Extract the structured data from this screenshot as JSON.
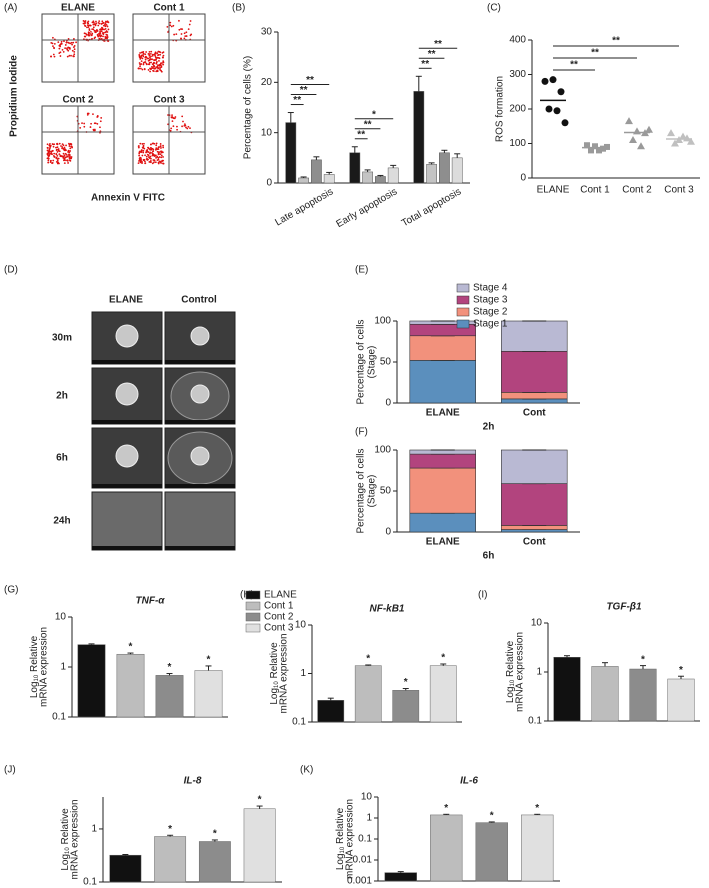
{
  "panel_labels": [
    "(A)",
    "(B)",
    "(C)",
    "(D)",
    "(E)",
    "(F)",
    "(G)",
    "(H)",
    "(I)",
    "(J)",
    "(K)"
  ],
  "flow_cytometry": {
    "ylabel": "Propidium Iodide",
    "xlabel": "Annexin V FITC",
    "plots": [
      "ELANE",
      "Cont 1",
      "Cont 2",
      "Cont 3"
    ]
  },
  "sem": {
    "columns": [
      "ELANE",
      "Control"
    ],
    "rows": [
      "30m",
      "2h",
      "6h",
      "24h"
    ]
  },
  "chart_data": [
    {
      "type": "grouped_bar",
      "ylabel": "Percentage of cells (%)",
      "categories": [
        "Late apoptosis",
        "Early apoptosis",
        "Total apoptosis"
      ],
      "series": [
        {
          "color": "#1a1a1a",
          "values": [
            12,
            6,
            18.2
          ],
          "errors": [
            2,
            1.2,
            3
          ]
        },
        {
          "color": "#c4c4c4",
          "values": [
            1,
            2.2,
            3.7
          ],
          "errors": [
            0.2,
            0.4,
            0.3
          ],
          "significance": [
            "**",
            "**",
            "**"
          ]
        },
        {
          "color": "#8e8e8e",
          "values": [
            4.6,
            1.3,
            6
          ],
          "errors": [
            0.6,
            0.2,
            0.5
          ],
          "significance": [
            "**",
            "**",
            "**"
          ]
        },
        {
          "color": "#dcdcdc",
          "values": [
            1.7,
            3,
            5
          ],
          "errors": [
            0.4,
            0.5,
            0.8
          ],
          "significance": [
            "**",
            "*",
            "**"
          ]
        }
      ],
      "ylim": [
        0,
        30
      ],
      "yticks": [
        0,
        10,
        20,
        30
      ]
    },
    {
      "type": "strip",
      "ylabel": "ROS formation",
      "categories": [
        "ELANE",
        "Cont 1",
        "Cont 2",
        "Cont 3"
      ],
      "values": [
        [
          280,
          285,
          250,
          200,
          195,
          160
        ],
        [
          95,
          92,
          85,
          80,
          80,
          90
        ],
        [
          165,
          135,
          130,
          110,
          92,
          140
        ],
        [
          130,
          110,
          115,
          100,
          120,
          105
        ]
      ],
      "medians": [
        225,
        88,
        132,
        113
      ],
      "colors": [
        "#111111",
        "#9a9a9a",
        "#9a9a9a",
        "#c0c0c0"
      ],
      "markers": [
        "circle",
        "square",
        "triangle",
        "triangle"
      ],
      "significance": [
        null,
        "**",
        "**",
        "**"
      ],
      "ylim": [
        0,
        400
      ],
      "yticks": [
        0,
        100,
        200,
        300,
        400
      ]
    },
    {
      "type": "stacked_bar",
      "ylabel": [
        "Percentage of cells",
        "(Stage)"
      ],
      "xlabel": "2h",
      "categories": [
        "ELANE",
        "Cont"
      ],
      "series": [
        {
          "name": "Stage 1",
          "color": "#5b8fbd",
          "values": [
            52,
            5
          ]
        },
        {
          "name": "Stage 2",
          "color": "#f2917c",
          "values": [
            30,
            8
          ]
        },
        {
          "name": "Stage 3",
          "color": "#b2447e",
          "values": [
            14,
            50
          ]
        },
        {
          "name": "Stage 4",
          "color": "#b9b9d3",
          "values": [
            4,
            37
          ]
        }
      ],
      "ylim": [
        0,
        100
      ],
      "yticks": [
        0,
        50,
        100
      ],
      "legend": true
    },
    {
      "type": "stacked_bar",
      "ylabel": [
        "Percentage of cells",
        "(Stage)"
      ],
      "xlabel": "6h",
      "categories": [
        "ELANE",
        "Cont"
      ],
      "series": [
        {
          "color": "#5b8fbd",
          "values": [
            23,
            3
          ]
        },
        {
          "color": "#f2917c",
          "values": [
            55,
            5
          ]
        },
        {
          "color": "#b2447e",
          "values": [
            17,
            51
          ]
        },
        {
          "color": "#b9b9d3",
          "values": [
            5,
            41
          ]
        }
      ],
      "ylim": [
        0,
        100
      ],
      "yticks": [
        0,
        50,
        100
      ],
      "legend": false
    },
    {
      "type": "log_bar",
      "title": "TNF-α",
      "ylabel": {
        "base": "Log",
        "sub": "10",
        "text": " Relative",
        "line2": "mRNA expression"
      },
      "values": [
        2.8,
        1.8,
        0.68,
        0.85
      ],
      "errors": [
        0.1,
        0.1,
        0.06,
        0.2
      ],
      "colors": [
        "#111111",
        "#bdbdbd",
        "#8c8c8c",
        "#e0e0e0"
      ],
      "significance": [
        null,
        "*",
        "*",
        "*"
      ],
      "ylim": [
        0.1,
        10
      ],
      "yticks": [
        0.1,
        1,
        10
      ],
      "log_scale": true,
      "legend": [
        "ELANE",
        "Cont 1",
        "Cont 2",
        "Cont 3"
      ]
    },
    {
      "type": "log_bar",
      "title": "NF-kB1",
      "ylabel": {
        "base": "Log",
        "sub": "10",
        "text": " Relative",
        "line2": "mRNA expression"
      },
      "values": [
        0.28,
        1.45,
        0.45,
        1.45
      ],
      "errors": [
        0.03,
        0.05,
        0.04,
        0.12
      ],
      "colors": [
        "#111111",
        "#bdbdbd",
        "#8c8c8c",
        "#e0e0e0"
      ],
      "significance": [
        null,
        "*",
        "*",
        "*"
      ],
      "ylim": [
        0.1,
        10
      ],
      "yticks": [
        0.1,
        1,
        10
      ],
      "log_scale": true
    },
    {
      "type": "log_bar",
      "title": "TGF-β1",
      "ylabel": {
        "base": "Log",
        "sub": "10",
        "text": " Relative",
        "line2": "mRNA expression"
      },
      "values": [
        2.0,
        1.3,
        1.15,
        0.72
      ],
      "errors": [
        0.15,
        0.25,
        0.2,
        0.1
      ],
      "colors": [
        "#111111",
        "#bdbdbd",
        "#8c8c8c",
        "#e0e0e0"
      ],
      "significance": [
        null,
        null,
        "*",
        "*"
      ],
      "ylim": [
        0.1,
        10
      ],
      "yticks": [
        0.1,
        1,
        10
      ],
      "log_scale": true
    },
    {
      "type": "log_bar",
      "title": "IL-8",
      "ylabel": {
        "base": "Log",
        "sub": "10",
        "text": " Relative",
        "line2": "mRNA expression"
      },
      "values": [
        0.32,
        0.72,
        0.58,
        2.4
      ],
      "errors": [
        0.01,
        0.04,
        0.04,
        0.3
      ],
      "colors": [
        "#111111",
        "#bdbdbd",
        "#8c8c8c",
        "#e0e0e0"
      ],
      "significance": [
        null,
        "*",
        "*",
        "*"
      ],
      "ylim": [
        0.1,
        4
      ],
      "yticks": [
        0.1,
        1
      ],
      "log_scale": true
    },
    {
      "type": "log_bar",
      "title": "IL-6",
      "ylabel": {
        "base": "Log",
        "sub": "10",
        "text": " Relative",
        "line2": "mRNA expression"
      },
      "values": [
        0.0025,
        1.4,
        0.6,
        1.4
      ],
      "errors": [
        0.0003,
        0.1,
        0.05,
        0.1
      ],
      "colors": [
        "#111111",
        "#bdbdbd",
        "#8c8c8c",
        "#e0e0e0"
      ],
      "significance": [
        null,
        "*",
        "*",
        "*"
      ],
      "ylim": [
        0.001,
        10
      ],
      "yticks": [
        0.001,
        0.01,
        0.1,
        1,
        10
      ],
      "log_scale": true
    }
  ]
}
